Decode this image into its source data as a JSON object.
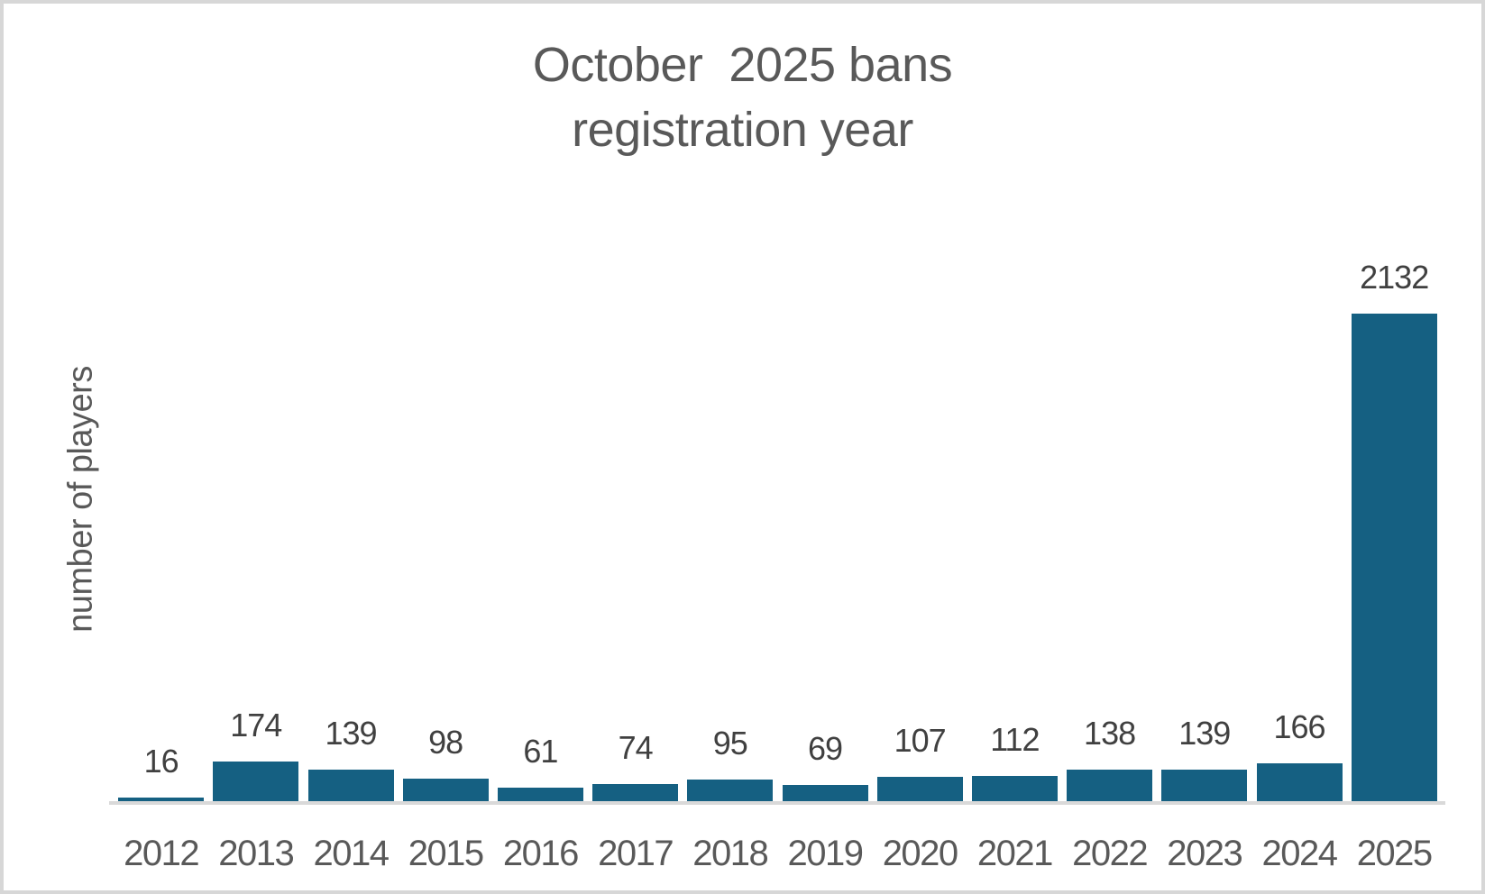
{
  "chart_data": {
    "type": "bar",
    "title": "October  2025 bans\nregistration year",
    "xlabel": "",
    "ylabel": "number of players",
    "categories": [
      "2012",
      "2013",
      "2014",
      "2015",
      "2016",
      "2017",
      "2018",
      "2019",
      "2020",
      "2021",
      "2022",
      "2023",
      "2024",
      "2025"
    ],
    "values": [
      16,
      174,
      139,
      98,
      61,
      74,
      95,
      69,
      107,
      112,
      138,
      139,
      166,
      2132
    ],
    "data_labels": [
      16,
      174,
      139,
      98,
      61,
      74,
      95,
      69,
      107,
      112,
      138,
      139,
      166,
      2132
    ],
    "ylim": [
      0,
      2132
    ],
    "grid": false,
    "legend": false,
    "y_axis_ticks_visible": false,
    "colors": {
      "bar": "#156082",
      "axis_line": "#d9d9d9",
      "title_text": "#595959",
      "tick_text": "#595959",
      "value_label_text": "#404040",
      "frame_border": "#d7d7d7",
      "background": "#ffffff"
    }
  }
}
